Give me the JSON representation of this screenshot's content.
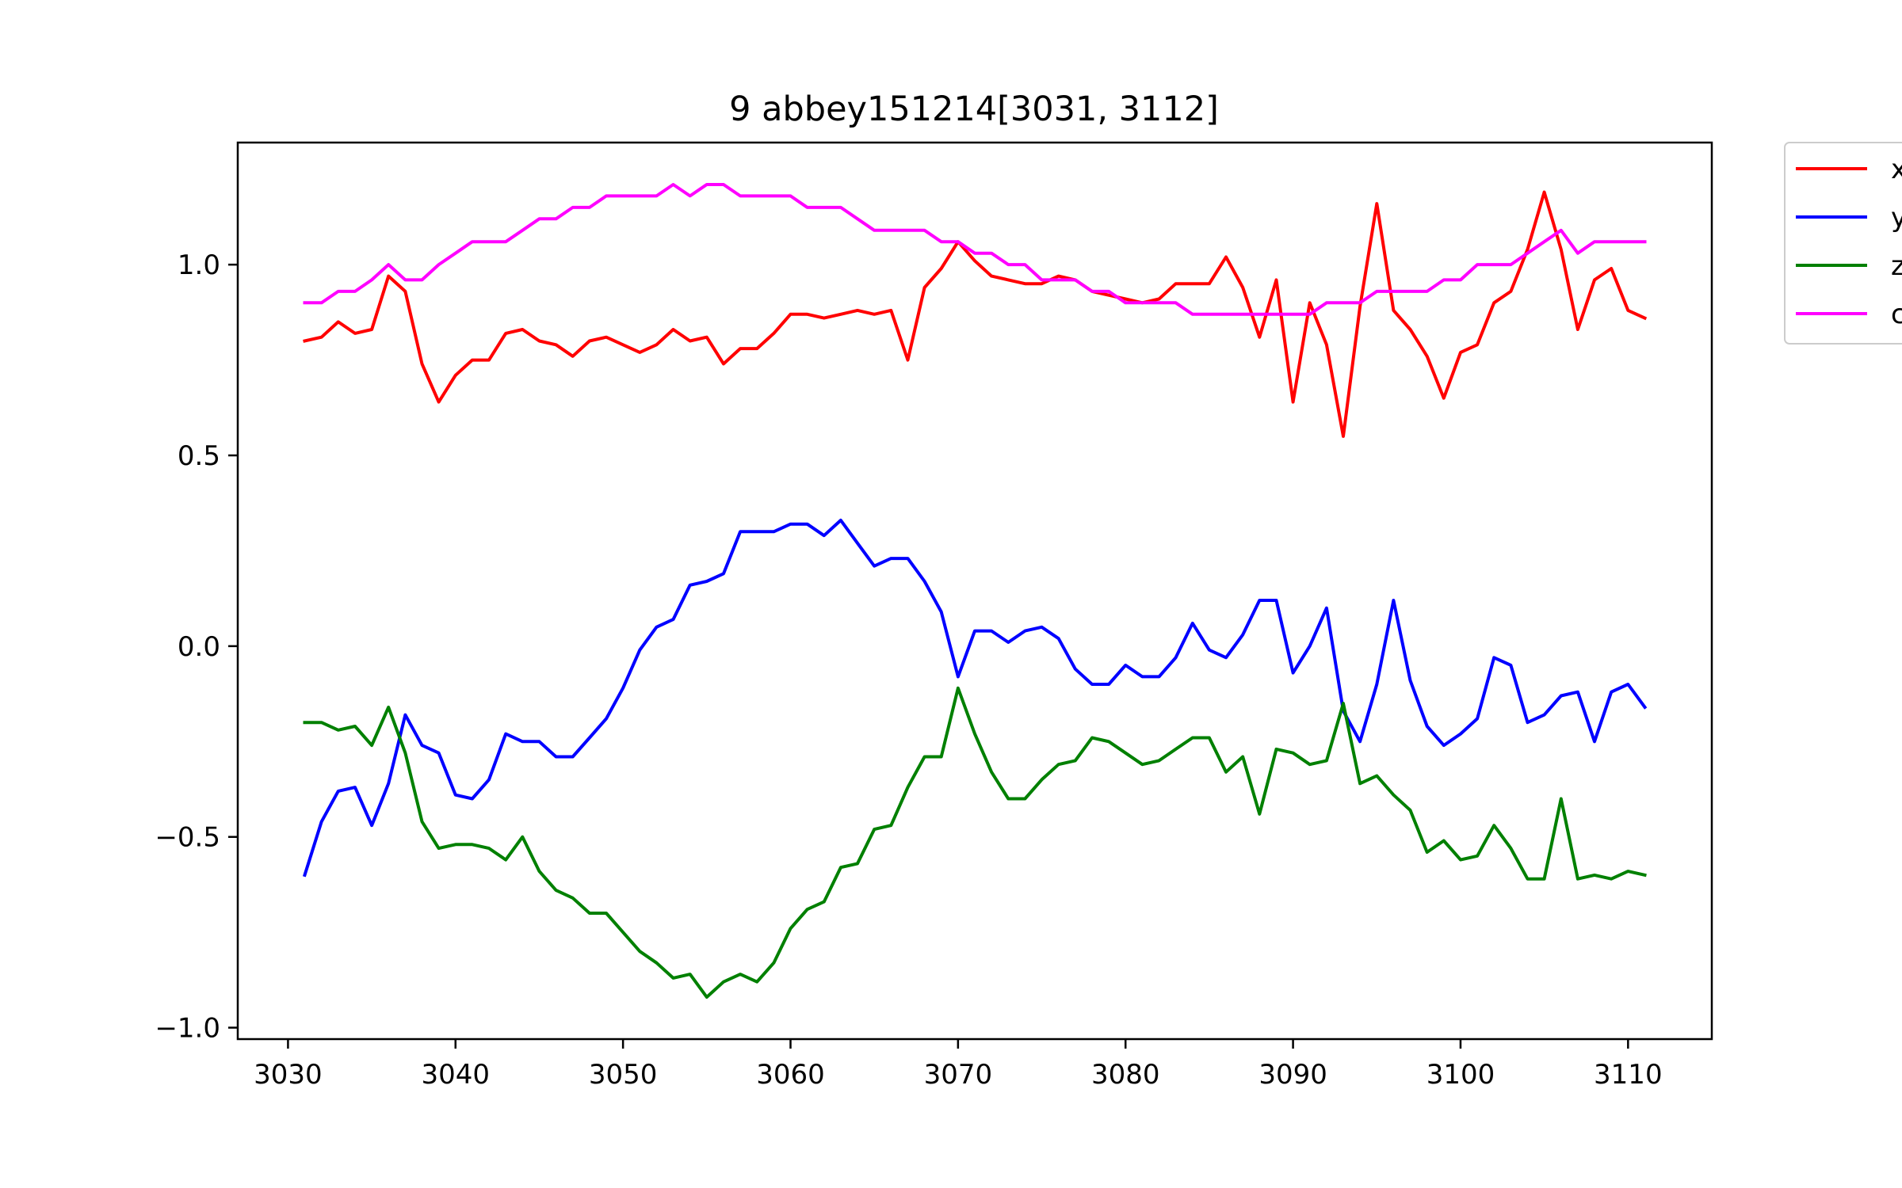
{
  "chart_data": {
    "type": "line",
    "title": "9 abbey151214[3031, 3112]",
    "xlabel": "",
    "ylabel": "",
    "xlim": [
      3027,
      3115
    ],
    "ylim": [
      -1.03,
      1.32
    ],
    "xticks": [
      3030,
      3040,
      3050,
      3060,
      3070,
      3080,
      3090,
      3100,
      3110
    ],
    "xtick_labels": [
      "3030",
      "3040",
      "3050",
      "3060",
      "3070",
      "3080",
      "3090",
      "3100",
      "3110"
    ],
    "yticks": [
      1.0,
      0.5,
      0.0,
      -0.5,
      -1.0
    ],
    "ytick_labels": [
      "1.0",
      "0.5",
      "0.0",
      "−0.5",
      "−1.0"
    ],
    "grid": false,
    "legend_position": "outside-top-right",
    "x_start": 3031,
    "series": [
      {
        "name": "x",
        "color": "#ff0000",
        "values": [
          0.8,
          0.81,
          0.85,
          0.82,
          0.83,
          0.97,
          0.93,
          0.74,
          0.64,
          0.71,
          0.75,
          0.75,
          0.82,
          0.83,
          0.8,
          0.79,
          0.76,
          0.8,
          0.81,
          0.79,
          0.77,
          0.79,
          0.83,
          0.8,
          0.81,
          0.74,
          0.78,
          0.78,
          0.82,
          0.87,
          0.87,
          0.86,
          0.87,
          0.88,
          0.87,
          0.88,
          0.75,
          0.94,
          0.99,
          1.06,
          1.01,
          0.97,
          0.96,
          0.95,
          0.95,
          0.97,
          0.96,
          0.93,
          0.92,
          0.91,
          0.9,
          0.91,
          0.95,
          0.95,
          0.95,
          1.02,
          0.94,
          0.81,
          0.96,
          0.64,
          0.9,
          0.79,
          0.55,
          0.89,
          1.16,
          0.88,
          0.83,
          0.76,
          0.65,
          0.77,
          0.79,
          0.9,
          0.93,
          1.04,
          1.19,
          1.04,
          0.83,
          0.96,
          0.99,
          0.88,
          0.86
        ]
      },
      {
        "name": "y",
        "color": "#0000ff",
        "values": [
          -0.6,
          -0.46,
          -0.38,
          -0.37,
          -0.47,
          -0.36,
          -0.18,
          -0.26,
          -0.28,
          -0.39,
          -0.4,
          -0.35,
          -0.23,
          -0.25,
          -0.25,
          -0.29,
          -0.29,
          -0.24,
          -0.19,
          -0.11,
          -0.01,
          0.05,
          0.07,
          0.16,
          0.17,
          0.19,
          0.3,
          0.3,
          0.3,
          0.32,
          0.32,
          0.29,
          0.33,
          0.27,
          0.21,
          0.23,
          0.23,
          0.17,
          0.09,
          -0.08,
          0.04,
          0.04,
          0.01,
          0.04,
          0.05,
          0.02,
          -0.06,
          -0.1,
          -0.1,
          -0.05,
          -0.08,
          -0.08,
          -0.03,
          0.06,
          -0.01,
          -0.03,
          0.03,
          0.12,
          0.12,
          -0.07,
          0.0,
          0.1,
          -0.17,
          -0.25,
          -0.1,
          0.12,
          -0.09,
          -0.21,
          -0.26,
          -0.23,
          -0.19,
          -0.03,
          -0.05,
          -0.2,
          -0.18,
          -0.13,
          -0.12,
          -0.25,
          -0.12,
          -0.1,
          -0.16
        ]
      },
      {
        "name": "z",
        "color": "#008000",
        "values": [
          -0.2,
          -0.2,
          -0.22,
          -0.21,
          -0.26,
          -0.16,
          -0.28,
          -0.46,
          -0.53,
          -0.52,
          -0.52,
          -0.53,
          -0.56,
          -0.5,
          -0.59,
          -0.64,
          -0.66,
          -0.7,
          -0.7,
          -0.75,
          -0.8,
          -0.83,
          -0.87,
          -0.86,
          -0.92,
          -0.88,
          -0.86,
          -0.88,
          -0.83,
          -0.74,
          -0.69,
          -0.67,
          -0.58,
          -0.57,
          -0.48,
          -0.47,
          -0.37,
          -0.29,
          -0.29,
          -0.11,
          -0.23,
          -0.33,
          -0.4,
          -0.4,
          -0.35,
          -0.31,
          -0.3,
          -0.24,
          -0.25,
          -0.28,
          -0.31,
          -0.3,
          -0.27,
          -0.24,
          -0.24,
          -0.33,
          -0.29,
          -0.44,
          -0.27,
          -0.28,
          -0.31,
          -0.3,
          -0.15,
          -0.36,
          -0.34,
          -0.39,
          -0.43,
          -0.54,
          -0.51,
          -0.56,
          -0.55,
          -0.47,
          -0.53,
          -0.61,
          -0.61,
          -0.4,
          -0.61,
          -0.6,
          -0.61,
          -0.59,
          -0.6
        ]
      },
      {
        "name": "c",
        "color": "#ff00ff",
        "values": [
          0.9,
          0.9,
          0.93,
          0.93,
          0.96,
          1.0,
          0.96,
          0.96,
          1.0,
          1.03,
          1.06,
          1.06,
          1.06,
          1.09,
          1.12,
          1.12,
          1.15,
          1.15,
          1.18,
          1.18,
          1.18,
          1.18,
          1.21,
          1.18,
          1.21,
          1.21,
          1.18,
          1.18,
          1.18,
          1.18,
          1.15,
          1.15,
          1.15,
          1.12,
          1.09,
          1.09,
          1.09,
          1.09,
          1.06,
          1.06,
          1.03,
          1.03,
          1.0,
          1.0,
          0.96,
          0.96,
          0.96,
          0.93,
          0.93,
          0.9,
          0.9,
          0.9,
          0.9,
          0.87,
          0.87,
          0.87,
          0.87,
          0.87,
          0.87,
          0.87,
          0.87,
          0.9,
          0.9,
          0.9,
          0.93,
          0.93,
          0.93,
          0.93,
          0.96,
          0.96,
          1.0,
          1.0,
          1.0,
          1.03,
          1.06,
          1.09,
          1.03,
          1.06,
          1.06,
          1.06,
          1.06
        ]
      }
    ]
  }
}
